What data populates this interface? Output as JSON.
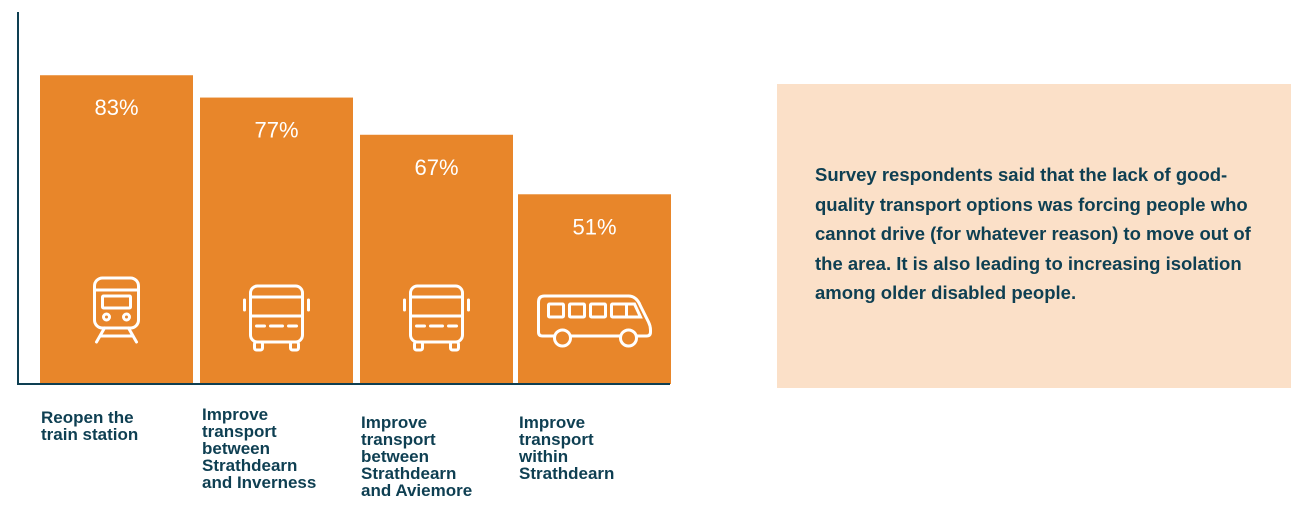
{
  "chart_data": {
    "type": "bar",
    "categories": [
      "Reopen the\ntrain station",
      "Improve\ntransport\nbetween\nStrathdearn\nand Inverness",
      "Improve\ntransport\nbetween\nStrathdearn\nand Aviemore",
      "Improve\ntransport\nwithin\nStrathdearn"
    ],
    "values": [
      83,
      77,
      67,
      51
    ],
    "value_labels": [
      "83%",
      "77%",
      "67%",
      "51%"
    ],
    "icons": [
      "train-icon",
      "bus-icon",
      "bus-icon",
      "minibus-icon"
    ],
    "title": "",
    "xlabel": "",
    "ylabel": "",
    "ylim": [
      0,
      100
    ],
    "grid": false,
    "bar_color": "#e8862a",
    "value_label_color": "#ffffff",
    "axis_color": "#0e3f52"
  },
  "callout": {
    "text": "Survey respondents said that the lack of good-quality transport options was forcing people who cannot drive (for whatever reason) to move out of the area. It is also leading to increasing isolation among older disabled people.",
    "background": "#fbe0c8",
    "text_color": "#0e3f52"
  }
}
